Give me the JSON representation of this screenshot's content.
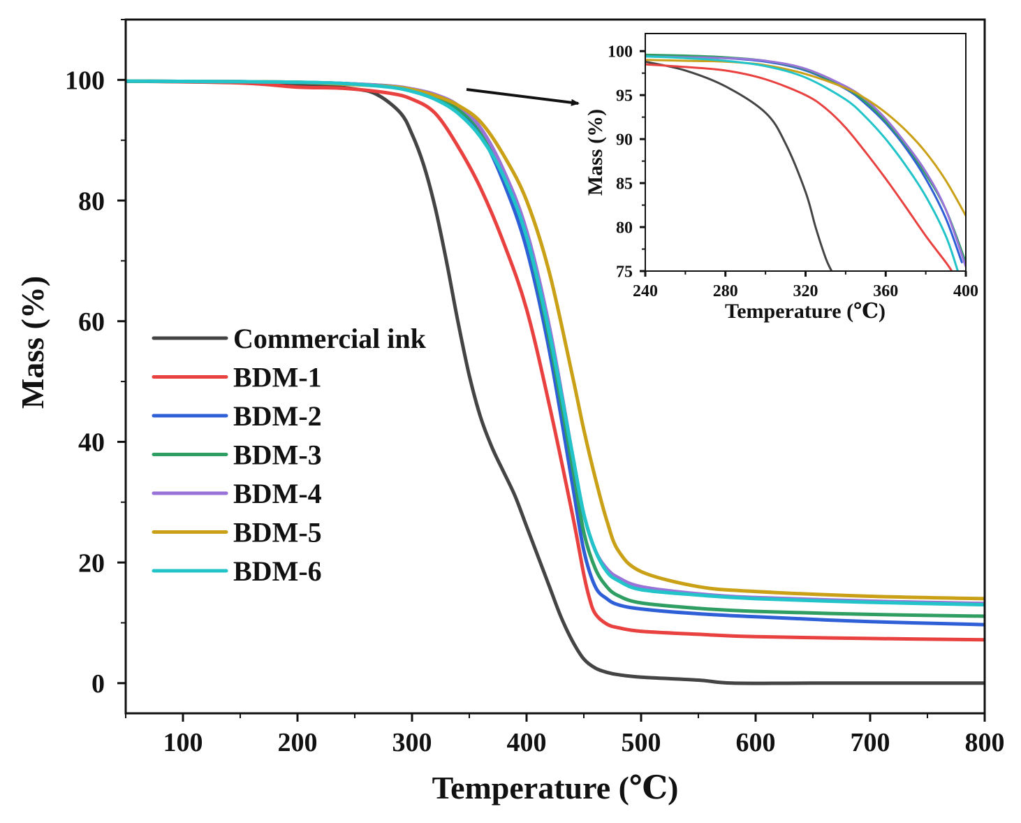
{
  "chart_data": [
    {
      "type": "line",
      "id": "main",
      "xlabel": "Temperature (℃)",
      "ylabel": "Mass (%)",
      "xlim": [
        50,
        800
      ],
      "ylim": [
        -5,
        110
      ],
      "xticks": [
        100,
        200,
        300,
        400,
        500,
        600,
        700,
        800
      ],
      "yticks": [
        0,
        20,
        40,
        60,
        80,
        100
      ],
      "legend_position": "center-left",
      "series": [
        {
          "name": "Commercial ink",
          "color": "#444444",
          "x": [
            50,
            150,
            200,
            250,
            270,
            290,
            300,
            310,
            320,
            330,
            340,
            350,
            360,
            370,
            380,
            390,
            400,
            410,
            420,
            430,
            440,
            450,
            460,
            470,
            480,
            500,
            550,
            580,
            650,
            800
          ],
          "y": [
            99.8,
            99.6,
            99.3,
            98.5,
            97.5,
            94.5,
            91,
            86,
            79,
            70,
            60,
            51,
            44,
            39,
            35,
            31,
            26,
            21,
            16,
            11,
            7,
            4,
            2.5,
            1.8,
            1.4,
            1,
            0.5,
            0,
            0,
            0
          ]
        },
        {
          "name": "BDM-1",
          "color": "#e8413f",
          "x": [
            50,
            150,
            200,
            240,
            280,
            300,
            320,
            340,
            360,
            380,
            400,
            420,
            440,
            450,
            455,
            460,
            470,
            480,
            500,
            550,
            600,
            700,
            800
          ],
          "y": [
            99.8,
            99.5,
            98.8,
            98.6,
            97.8,
            96.8,
            94.5,
            89,
            82,
            73,
            62,
            46,
            28,
            18,
            14,
            11.5,
            9.8,
            9.2,
            8.6,
            8.1,
            7.7,
            7.4,
            7.2
          ]
        },
        {
          "name": "BDM-2",
          "color": "#2e5fd6",
          "x": [
            50,
            150,
            200,
            240,
            280,
            300,
            320,
            340,
            360,
            380,
            400,
            420,
            440,
            450,
            460,
            470,
            480,
            500,
            550,
            600,
            700,
            800
          ],
          "y": [
            99.8,
            99.7,
            99.6,
            99.4,
            98.9,
            98.3,
            97.2,
            95,
            91,
            83,
            72,
            55,
            33,
            22,
            16,
            14,
            13,
            12.3,
            11.5,
            11,
            10.2,
            9.7
          ]
        },
        {
          "name": "BDM-3",
          "color": "#2f9e63",
          "x": [
            50,
            150,
            200,
            240,
            280,
            300,
            320,
            340,
            360,
            380,
            400,
            420,
            440,
            450,
            460,
            470,
            480,
            500,
            550,
            600,
            700,
            800
          ],
          "y": [
            99.8,
            99.7,
            99.6,
            99.4,
            99,
            98.4,
            97.4,
            95.2,
            91.5,
            84,
            74,
            57,
            36,
            25,
            19,
            16,
            14.5,
            13.3,
            12.4,
            11.9,
            11.4,
            11.1
          ]
        },
        {
          "name": "BDM-4",
          "color": "#9a73d8",
          "x": [
            50,
            150,
            200,
            240,
            280,
            300,
            320,
            340,
            360,
            380,
            400,
            420,
            440,
            450,
            460,
            470,
            480,
            500,
            550,
            600,
            700,
            800
          ],
          "y": [
            99.8,
            99.7,
            99.6,
            99.4,
            99,
            98.5,
            97.6,
            95.8,
            92,
            85,
            75,
            59,
            38,
            28,
            22,
            19,
            17.5,
            16,
            14.8,
            14.2,
            13.6,
            13.2
          ]
        },
        {
          "name": "BDM-5",
          "color": "#c9a016",
          "x": [
            50,
            150,
            200,
            240,
            280,
            300,
            320,
            340,
            360,
            380,
            400,
            420,
            440,
            450,
            460,
            470,
            480,
            500,
            550,
            600,
            700,
            800
          ],
          "y": [
            99.8,
            99.7,
            99.6,
            99.3,
            98.9,
            98.4,
            97.4,
            95.8,
            93,
            87.5,
            80,
            68,
            51,
            42,
            34,
            27,
            22,
            18.5,
            16,
            15.2,
            14.4,
            14
          ]
        },
        {
          "name": "BDM-6",
          "color": "#22c4c9",
          "x": [
            50,
            150,
            200,
            240,
            280,
            300,
            320,
            340,
            360,
            380,
            400,
            420,
            440,
            450,
            460,
            470,
            480,
            500,
            550,
            600,
            700,
            800
          ],
          "y": [
            99.8,
            99.7,
            99.6,
            99.4,
            98.8,
            98.1,
            96.8,
            94.5,
            90.5,
            84,
            74,
            58,
            38,
            28,
            22,
            18.5,
            17,
            15.5,
            14.6,
            14,
            13.4,
            13
          ]
        }
      ]
    },
    {
      "type": "line",
      "id": "inset",
      "xlabel": "Temperature (℃)",
      "ylabel": "Mass (%)",
      "xlim": [
        240,
        400
      ],
      "ylim": [
        75,
        102
      ],
      "xticks": [
        240,
        280,
        320,
        360,
        400
      ],
      "yticks": [
        75,
        80,
        85,
        90,
        95,
        100
      ],
      "series": [
        {
          "name": "Commercial ink",
          "color": "#444444",
          "x": [
            240,
            260,
            280,
            300,
            310,
            320,
            325,
            330,
            333
          ],
          "y": [
            98.8,
            97.8,
            96,
            93,
            89.5,
            84,
            80,
            76.5,
            75
          ]
        },
        {
          "name": "BDM-1",
          "color": "#e8413f",
          "x": [
            240,
            260,
            280,
            300,
            320,
            330,
            340,
            350,
            360,
            370,
            380,
            390,
            393
          ],
          "y": [
            98.5,
            98.2,
            97.8,
            96.8,
            95,
            93.5,
            91.3,
            88.5,
            85.5,
            82.3,
            79,
            76,
            75
          ]
        },
        {
          "name": "BDM-2",
          "color": "#2e5fd6",
          "x": [
            240,
            260,
            280,
            300,
            320,
            340,
            350,
            360,
            370,
            380,
            390,
            398
          ],
          "y": [
            99.5,
            99.4,
            99.2,
            98.8,
            97.8,
            95.7,
            94,
            91.8,
            89,
            85.5,
            81,
            76
          ]
        },
        {
          "name": "BDM-3",
          "color": "#2f9e63",
          "x": [
            240,
            260,
            280,
            300,
            320,
            340,
            350,
            360,
            370,
            380,
            390,
            400
          ],
          "y": [
            99.6,
            99.5,
            99.3,
            98.9,
            97.9,
            95.8,
            94.2,
            92,
            89.3,
            86,
            82,
            76
          ]
        },
        {
          "name": "BDM-4",
          "color": "#9a73d8",
          "x": [
            240,
            260,
            280,
            300,
            320,
            340,
            350,
            360,
            370,
            380,
            390,
            400
          ],
          "y": [
            99.4,
            99.3,
            99.2,
            98.9,
            98,
            96,
            94.5,
            92.3,
            89.5,
            86.3,
            82,
            75.5
          ]
        },
        {
          "name": "BDM-5",
          "color": "#c9a016",
          "x": [
            240,
            260,
            280,
            300,
            320,
            340,
            350,
            360,
            370,
            380,
            390,
            400
          ],
          "y": [
            99,
            98.9,
            98.8,
            98.4,
            97.4,
            95.8,
            94.6,
            93,
            91,
            88.5,
            85.3,
            81.3
          ]
        },
        {
          "name": "BDM-6",
          "color": "#22c4c9",
          "x": [
            240,
            260,
            280,
            300,
            320,
            340,
            350,
            360,
            370,
            380,
            390,
            396
          ],
          "y": [
            99.4,
            99.2,
            98.9,
            98.3,
            97,
            94.5,
            92.5,
            90,
            87,
            83.5,
            79,
            75
          ]
        }
      ]
    }
  ]
}
